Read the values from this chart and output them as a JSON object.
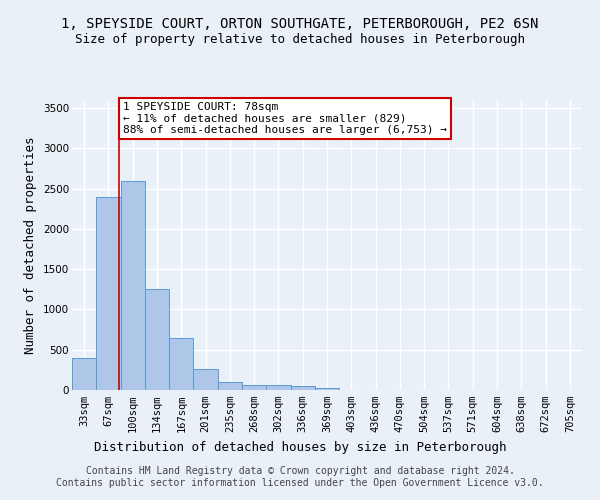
{
  "title": "1, SPEYSIDE COURT, ORTON SOUTHGATE, PETERBOROUGH, PE2 6SN",
  "subtitle": "Size of property relative to detached houses in Peterborough",
  "xlabel": "Distribution of detached houses by size in Peterborough",
  "ylabel": "Number of detached properties",
  "bar_values": [
    400,
    2400,
    2600,
    1250,
    650,
    260,
    100,
    60,
    60,
    50,
    30,
    0,
    0,
    0,
    0,
    0,
    0,
    0,
    0,
    0,
    0
  ],
  "bar_labels": [
    "33sqm",
    "67sqm",
    "100sqm",
    "134sqm",
    "167sqm",
    "201sqm",
    "235sqm",
    "268sqm",
    "302sqm",
    "336sqm",
    "369sqm",
    "403sqm",
    "436sqm",
    "470sqm",
    "504sqm",
    "537sqm",
    "571sqm",
    "604sqm",
    "638sqm",
    "672sqm",
    "705sqm"
  ],
  "bar_color": "#aec6e8",
  "bar_edge_color": "#5b9bd5",
  "vline_x": 1.45,
  "vline_color": "#cc0000",
  "annotation_text": "1 SPEYSIDE COURT: 78sqm\n← 11% of detached houses are smaller (829)\n88% of semi-detached houses are larger (6,753) →",
  "annotation_box_color": "#ffffff",
  "annotation_box_edge_color": "#cc0000",
  "ylim": [
    0,
    3600
  ],
  "yticks": [
    0,
    500,
    1000,
    1500,
    2000,
    2500,
    3000,
    3500
  ],
  "footer_line1": "Contains HM Land Registry data © Crown copyright and database right 2024.",
  "footer_line2": "Contains public sector information licensed under the Open Government Licence v3.0.",
  "background_color": "#eaf0f8",
  "grid_color": "#ffffff",
  "title_fontsize": 10,
  "subtitle_fontsize": 9,
  "axis_label_fontsize": 9,
  "tick_fontsize": 7.5,
  "footer_fontsize": 7,
  "annotation_fontsize": 8
}
